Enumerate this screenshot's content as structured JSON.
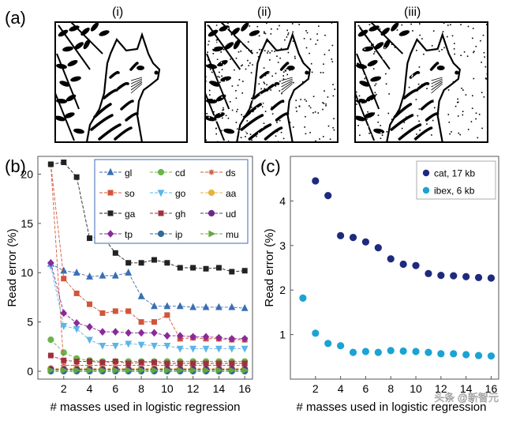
{
  "panel_labels": {
    "a": "(a)",
    "b": "(b)",
    "c": "(c)"
  },
  "subpanel_labels": [
    "(i)",
    "(ii)",
    "(iii)"
  ],
  "images": [
    {
      "name": "cat-image-original",
      "description_name": "cat"
    },
    {
      "name": "cat-image-noisy",
      "description_name": "cat"
    },
    {
      "name": "cat-image-denoised",
      "description_name": "cat"
    }
  ],
  "watermark": "头条 @新智元",
  "colors": {
    "gl": "#3a6eb4",
    "cd": "#6ab54a",
    "ds": "#d25a3c",
    "so": "#d2553a",
    "go": "#5bb5e6",
    "aa": "#e6b43c",
    "ga": "#222222",
    "gh": "#a0303c",
    "ud": "#6a2a8a",
    "tp": "#8a2a9a",
    "ip": "#2e6a9e",
    "mu": "#66a83a",
    "cat": "#1e2a7e",
    "ibex": "#1aa3d4"
  },
  "chart_data": [
    {
      "type": "line",
      "panel": "b",
      "xlabel": "# masses used in logistic regression",
      "ylabel": "Read error (%)",
      "xlim": [
        0,
        16.6
      ],
      "ylim": [
        -0.8,
        21.8
      ],
      "xticks": [
        2,
        4,
        6,
        8,
        10,
        12,
        14,
        16
      ],
      "yticks": [
        0,
        5,
        10,
        15,
        20
      ],
      "legend_position": "top-right",
      "x": [
        1,
        2,
        3,
        4,
        5,
        6,
        7,
        8,
        9,
        10,
        11,
        12,
        13,
        14,
        15,
        16
      ],
      "series": [
        {
          "name": "gl",
          "marker": "triangle",
          "values": [
            10.9,
            10.2,
            10.0,
            9.6,
            9.7,
            9.7,
            10.0,
            7.6,
            6.6,
            6.6,
            6.6,
            6.5,
            6.5,
            6.5,
            6.5,
            6.4
          ]
        },
        {
          "name": "cd",
          "marker": "circle",
          "values": [
            3.2,
            1.9,
            1.3,
            1.1,
            1.0,
            1.0,
            1.0,
            1.0,
            1.0,
            1.0,
            1.0,
            1.0,
            1.0,
            1.0,
            1.0,
            1.0
          ]
        },
        {
          "name": "ds",
          "marker": "asterisk",
          "values": [
            21.0,
            0.6,
            0.6,
            0.6,
            0.6,
            0.6,
            0.6,
            0.6,
            0.6,
            0.6,
            0.6,
            0.6,
            0.6,
            0.6,
            0.6,
            0.6
          ]
        },
        {
          "name": "so",
          "marker": "square",
          "values": [
            21.0,
            9.4,
            7.9,
            6.8,
            5.9,
            6.1,
            6.1,
            5.0,
            5.0,
            5.7,
            3.3,
            3.4,
            3.3,
            3.3,
            3.2,
            3.2
          ]
        },
        {
          "name": "go",
          "marker": "triangle-down",
          "values": [
            10.7,
            4.6,
            4.3,
            3.2,
            2.6,
            2.6,
            2.8,
            2.7,
            2.6,
            2.6,
            2.3,
            2.3,
            2.3,
            2.3,
            2.3,
            2.3
          ]
        },
        {
          "name": "aa",
          "marker": "circle",
          "values": [
            0.3,
            0.3,
            0.3,
            0.3,
            0.3,
            0.3,
            0.3,
            0.3,
            0.3,
            0.3,
            0.3,
            0.3,
            0.3,
            0.3,
            0.3,
            0.3
          ]
        },
        {
          "name": "ga",
          "marker": "square",
          "values": [
            21.0,
            21.2,
            19.7,
            13.5,
            13.7,
            12.0,
            11.0,
            11.0,
            11.3,
            11.0,
            10.5,
            10.5,
            10.4,
            10.5,
            10.1,
            10.2
          ]
        },
        {
          "name": "gh",
          "marker": "square",
          "values": [
            1.6,
            1.1,
            1.0,
            1.0,
            0.9,
            1.0,
            0.8,
            0.9,
            0.9,
            0.8,
            0.8,
            0.8,
            0.8,
            0.8,
            0.8,
            0.8
          ]
        },
        {
          "name": "ud",
          "marker": "circle",
          "values": [
            0.2,
            0.2,
            0.2,
            0.2,
            0.2,
            0.2,
            0.2,
            0.2,
            0.2,
            0.2,
            0.2,
            0.2,
            0.2,
            0.2,
            0.2,
            0.2
          ]
        },
        {
          "name": "tp",
          "marker": "diamond",
          "values": [
            11.0,
            5.9,
            4.9,
            4.5,
            4.0,
            4.0,
            3.9,
            3.9,
            3.9,
            3.6,
            3.6,
            3.5,
            3.5,
            3.4,
            3.3,
            3.3
          ]
        },
        {
          "name": "ip",
          "marker": "circle",
          "values": [
            0.0,
            0.0,
            0.0,
            0.0,
            0.0,
            0.0,
            0.0,
            0.0,
            0.0,
            0.0,
            0.0,
            0.0,
            0.0,
            0.0,
            0.0,
            0.0
          ]
        },
        {
          "name": "mu",
          "marker": "triangle-right",
          "values": [
            0.1,
            0.1,
            0.1,
            0.1,
            0.1,
            0.1,
            0.1,
            0.1,
            0.1,
            0.1,
            0.1,
            0.1,
            0.1,
            0.1,
            0.1,
            0.1
          ]
        }
      ]
    },
    {
      "type": "scatter",
      "panel": "c",
      "xlabel": "# masses used in logistic regression",
      "ylabel": "Read error (%)",
      "xlim": [
        0,
        16.6
      ],
      "ylim": [
        0,
        5.0
      ],
      "xticks": [
        2,
        4,
        6,
        8,
        10,
        12,
        14,
        16
      ],
      "yticks": [
        1,
        2,
        3,
        4
      ],
      "legend_position": "top-right",
      "series": [
        {
          "name": "cat, 17 kb",
          "key": "cat",
          "x": [
            2,
            3,
            4,
            5,
            6,
            7,
            8,
            9,
            10,
            11,
            12,
            13,
            14,
            15,
            16
          ],
          "values": [
            4.45,
            4.12,
            3.22,
            3.18,
            3.08,
            2.95,
            2.7,
            2.58,
            2.55,
            2.37,
            2.33,
            2.32,
            2.3,
            2.28,
            2.27
          ]
        },
        {
          "name": "ibex, 6 kb",
          "key": "ibex",
          "x": [
            1,
            2,
            3,
            4,
            5,
            6,
            7,
            8,
            9,
            10,
            11,
            12,
            13,
            14,
            15,
            16
          ],
          "values": [
            1.82,
            1.03,
            0.8,
            0.75,
            0.6,
            0.62,
            0.6,
            0.64,
            0.63,
            0.62,
            0.6,
            0.57,
            0.57,
            0.55,
            0.53,
            0.52
          ]
        }
      ]
    }
  ]
}
